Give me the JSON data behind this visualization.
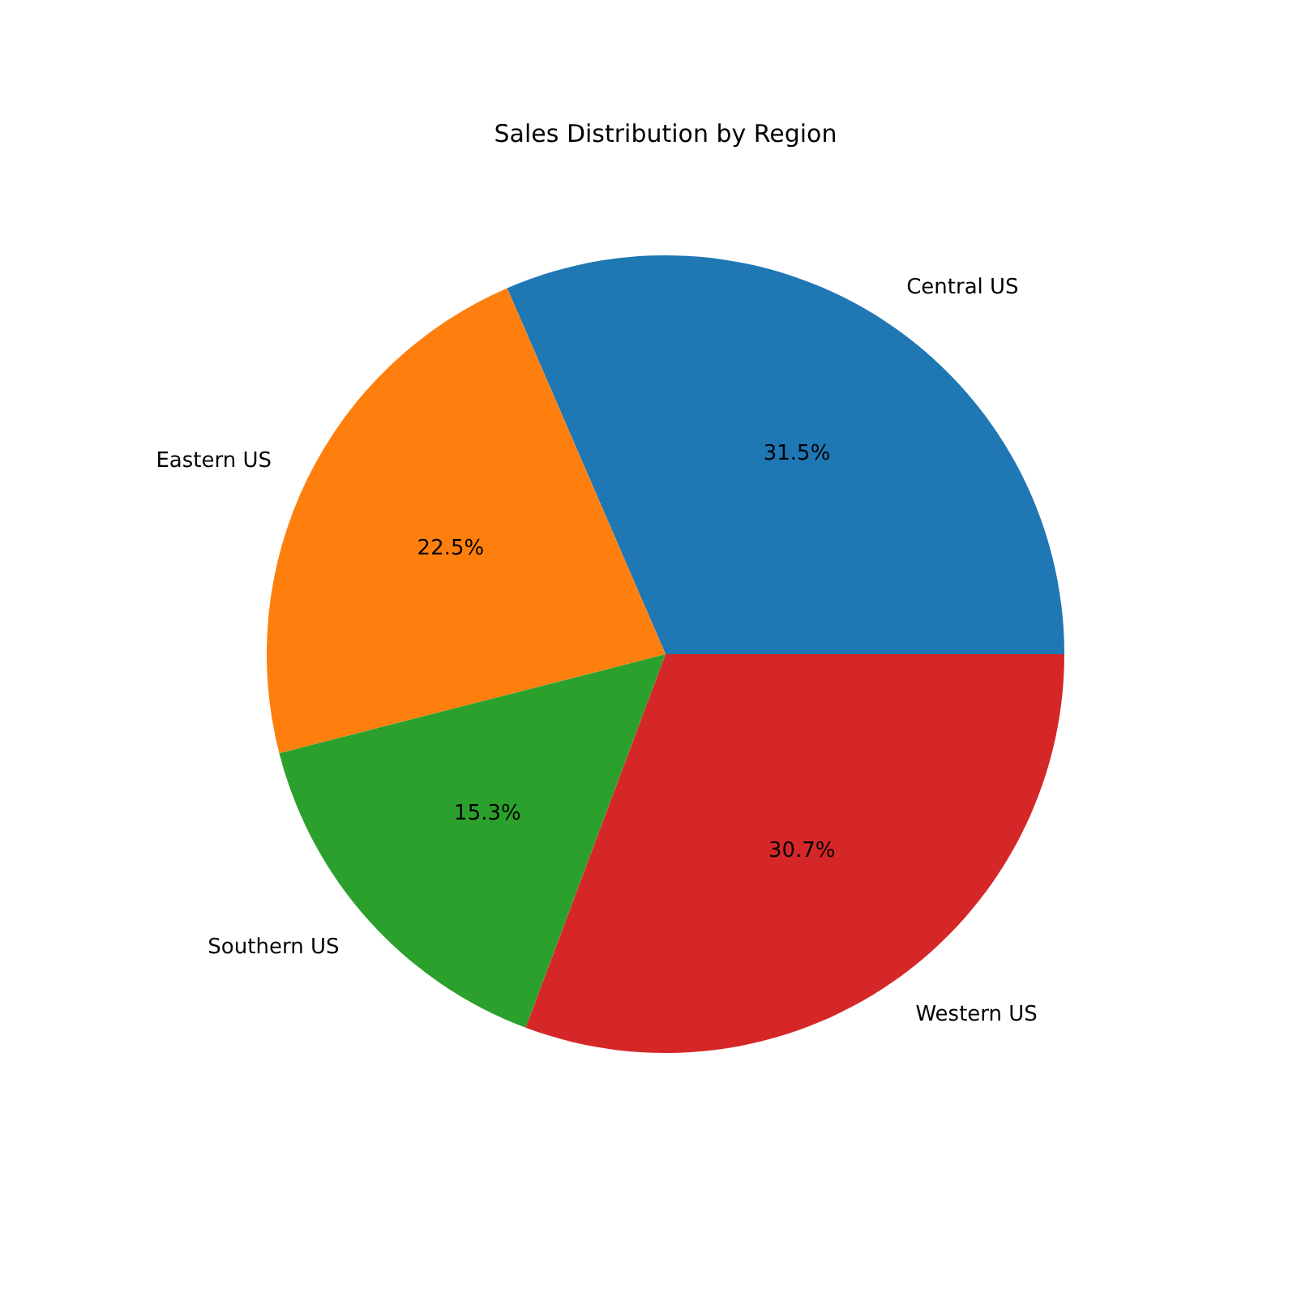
{
  "chart_data": {
    "type": "pie",
    "title": "Sales Distribution by Region",
    "categories": [
      "Central US",
      "Eastern US",
      "Southern US",
      "Western US"
    ],
    "values": [
      31.5,
      22.5,
      15.3,
      30.7
    ],
    "colors": [
      "#1f77b4",
      "#ff7f0e",
      "#2ca02c",
      "#d62728"
    ],
    "value_labels": [
      "31.5%",
      "22.5%",
      "15.3%",
      "30.7%"
    ]
  }
}
